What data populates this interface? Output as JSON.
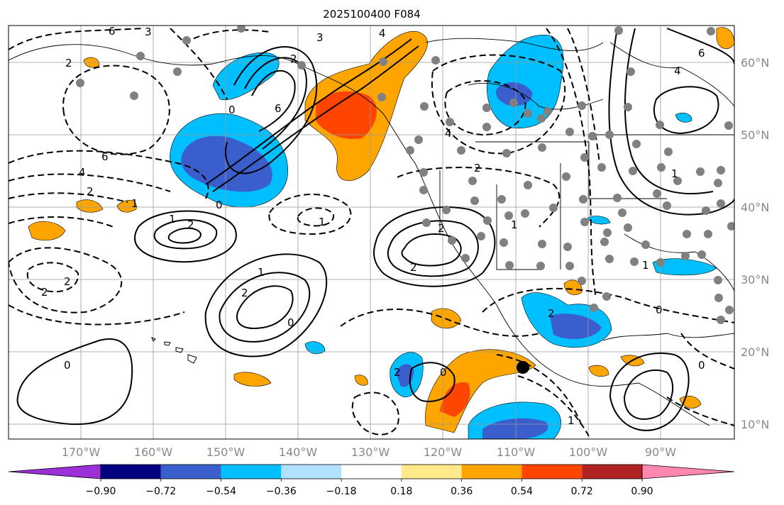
{
  "title": "2025100400 F084",
  "lon_labels": [
    "170°W",
    "160°W",
    "150°W",
    "140°W",
    "130°W",
    "120°W",
    "110°W",
    "100°W",
    "90°W"
  ],
  "lat_labels": [
    "60°N",
    "50°N",
    "40°N",
    "30°N",
    "20°N",
    "10°N"
  ],
  "colorbar": {
    "ticks": [
      "−0.90",
      "−0.72",
      "−0.54",
      "−0.36",
      "−0.18",
      "0.18",
      "0.36",
      "0.54",
      "0.72",
      "0.90"
    ],
    "colors": [
      "#9b30d9",
      "#000080",
      "#3a5fcd",
      "#00bfff",
      "#b0e2ff",
      "#ffffff",
      "#ffe98a",
      "#ffa500",
      "#ff4500",
      "#b22222",
      "#ff88b0"
    ]
  },
  "contour_labels": [
    "3",
    "4",
    "6",
    "0",
    "2",
    "2",
    "6",
    "3",
    "4",
    "6",
    "4",
    "2",
    "1",
    "2",
    "1",
    "2",
    "0",
    "1",
    "2",
    "1",
    "0",
    "2",
    "2",
    "1",
    "2",
    "1",
    "2",
    "0",
    "0",
    "2",
    "0",
    "1",
    "6",
    "1",
    "0",
    "2",
    "4"
  ],
  "colors": {
    "negative_fill": "#00bfff",
    "positive_fill": "#ffa500",
    "station": "#808080"
  }
}
